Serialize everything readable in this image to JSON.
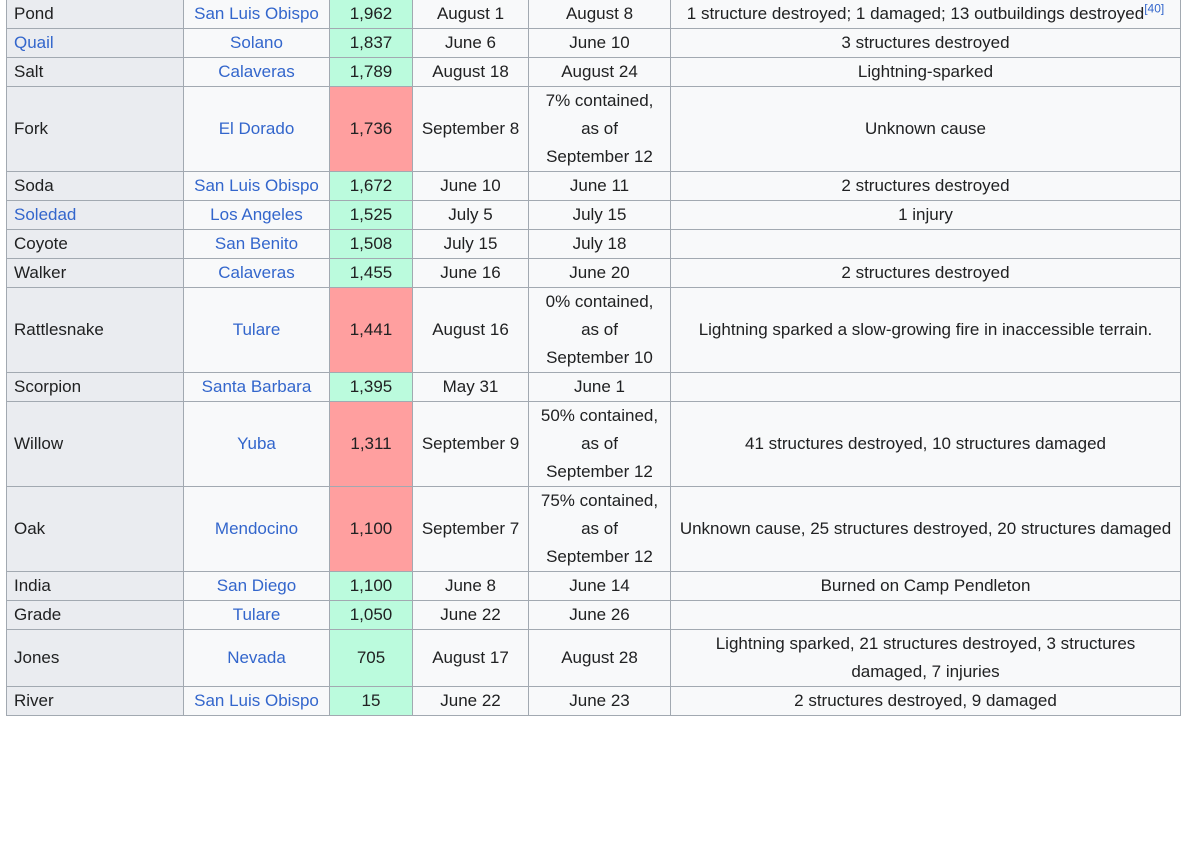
{
  "rows": [
    {
      "name": "Pond",
      "name_link": false,
      "county": "San Luis Obispo",
      "acres": "1,962",
      "status": "green",
      "start": "August 1",
      "contained": [
        "August 8"
      ],
      "notes": "1 structure destroyed; 1 damaged; 13 outbuildings destroyed",
      "ref": "[40]"
    },
    {
      "name": "Quail",
      "name_link": true,
      "county": "Solano",
      "acres": "1,837",
      "status": "green",
      "start": "June 6",
      "contained": [
        "June 10"
      ],
      "notes": "3 structures destroyed",
      "ref": ""
    },
    {
      "name": "Salt",
      "name_link": false,
      "county": "Calaveras",
      "acres": "1,789",
      "status": "green",
      "start": "August 18",
      "contained": [
        "August 24"
      ],
      "notes": "Lightning-sparked",
      "ref": ""
    },
    {
      "name": "Fork",
      "name_link": false,
      "county": "El Dorado",
      "acres": "1,736",
      "status": "red",
      "start": "September 8",
      "contained": [
        "7% contained,",
        "as of",
        "September 12"
      ],
      "notes": "Unknown cause",
      "ref": ""
    },
    {
      "name": "Soda",
      "name_link": false,
      "county": "San Luis Obispo",
      "acres": "1,672",
      "status": "green",
      "start": "June 10",
      "contained": [
        "June 11"
      ],
      "notes": "2 structures destroyed",
      "ref": ""
    },
    {
      "name": "Soledad",
      "name_link": true,
      "county": "Los Angeles",
      "acres": "1,525",
      "status": "green",
      "start": "July 5",
      "contained": [
        "July 15"
      ],
      "notes": "1 injury",
      "ref": ""
    },
    {
      "name": "Coyote",
      "name_link": false,
      "county": "San Benito",
      "acres": "1,508",
      "status": "green",
      "start": "July 15",
      "contained": [
        "July 18"
      ],
      "notes": "",
      "ref": ""
    },
    {
      "name": "Walker",
      "name_link": false,
      "county": "Calaveras",
      "acres": "1,455",
      "status": "green",
      "start": "June 16",
      "contained": [
        "June 20"
      ],
      "notes": "2 structures destroyed",
      "ref": ""
    },
    {
      "name": "Rattlesnake",
      "name_link": false,
      "county": "Tulare",
      "acres": "1,441",
      "status": "red",
      "start": "August 16",
      "contained": [
        "0% contained,",
        "as of",
        "September 10"
      ],
      "notes": "Lightning sparked a slow-growing fire in inaccessible terrain.",
      "ref": ""
    },
    {
      "name": "Scorpion",
      "name_link": false,
      "county": "Santa Barbara",
      "acres": "1,395",
      "status": "green",
      "start": "May 31",
      "contained": [
        "June 1"
      ],
      "notes": "",
      "ref": ""
    },
    {
      "name": "Willow",
      "name_link": false,
      "county": "Yuba",
      "acres": "1,311",
      "status": "red",
      "start": "September 9",
      "contained": [
        "50% contained,",
        "as of",
        "September 12"
      ],
      "notes": "41 structures destroyed, 10 structures damaged",
      "ref": ""
    },
    {
      "name": "Oak",
      "name_link": false,
      "county": "Mendocino",
      "acres": "1,100",
      "status": "red",
      "start": "September 7",
      "contained": [
        "75% contained,",
        "as of",
        "September 12"
      ],
      "notes": "Unknown cause, 25 structures destroyed, 20 structures damaged",
      "ref": ""
    },
    {
      "name": "India",
      "name_link": false,
      "county": "San Diego",
      "acres": "1,100",
      "status": "green",
      "start": "June 8",
      "contained": [
        "June 14"
      ],
      "notes": "Burned on Camp Pendleton",
      "ref": ""
    },
    {
      "name": "Grade",
      "name_link": false,
      "county": "Tulare",
      "acres": "1,050",
      "status": "green",
      "start": "June 22",
      "contained": [
        "June 26"
      ],
      "notes": "",
      "ref": ""
    },
    {
      "name": "Jones",
      "name_link": false,
      "county": "Nevada",
      "acres": "705",
      "status": "green",
      "start": "August 17",
      "contained": [
        "August 28"
      ],
      "notes": "Lightning sparked, 21 structures destroyed, 3 structures damaged, 7 injuries",
      "ref": ""
    },
    {
      "name": "River",
      "name_link": false,
      "county": "San Luis Obispo",
      "acres": "15",
      "status": "green",
      "start": "June 22",
      "contained": [
        "June 23"
      ],
      "notes": "2 structures destroyed, 9 damaged",
      "ref": ""
    }
  ]
}
